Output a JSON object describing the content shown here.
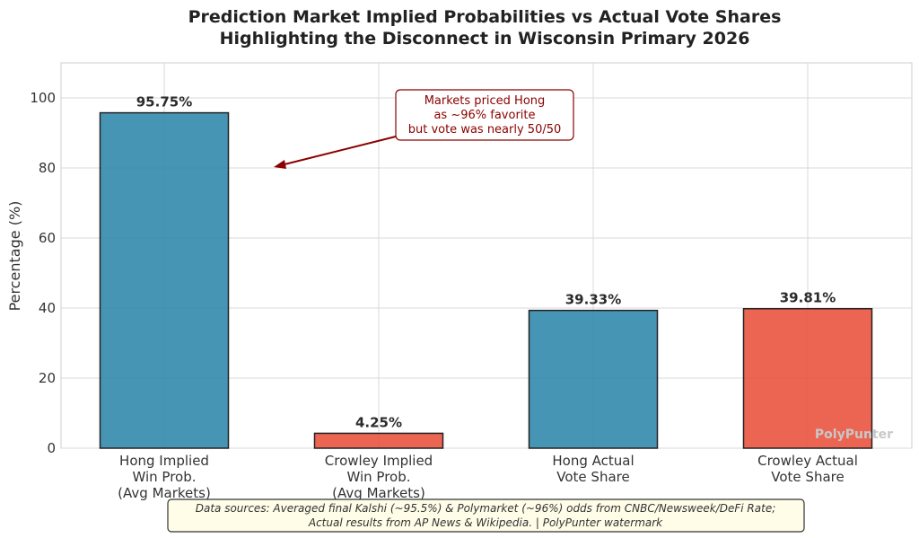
{
  "chart_data": {
    "type": "bar",
    "title": [
      "Prediction Market Implied Probabilities vs Actual Vote Shares",
      "Highlighting the Disconnect in Wisconsin Primary 2026"
    ],
    "xlabel": "",
    "ylabel": "Percentage (%)",
    "ylim": [
      0,
      110
    ],
    "yticks": [
      0,
      20,
      40,
      60,
      80,
      100
    ],
    "grid": true,
    "categories": [
      [
        "Hong Implied",
        "Win Prob.",
        "(Avg Markets)"
      ],
      [
        "Crowley Implied",
        "Win Prob.",
        "(Avg Markets)"
      ],
      [
        "Hong Actual",
        "Vote Share"
      ],
      [
        "Crowley Actual",
        "Vote Share"
      ]
    ],
    "values": [
      95.75,
      4.25,
      39.33,
      39.81
    ],
    "value_labels": [
      "95.75%",
      "4.25%",
      "39.33%",
      "39.81%"
    ],
    "colors": [
      "#2e86ab",
      "#e8503a",
      "#2e86ab",
      "#e8503a"
    ],
    "annotation": {
      "lines": [
        "Markets priced Hong",
        "as ~96% favorite",
        "but vote was nearly 50/50"
      ],
      "color": "#8b0000"
    },
    "watermark": "PolyPunter",
    "source_note": [
      "Data sources: Averaged final Kalshi (~95.5%) & Polymarket (~96%) odds from CNBC/Newsweek/DeFi Rate;",
      "Actual results from AP News & Wikipedia. | PolyPunter watermark"
    ]
  }
}
